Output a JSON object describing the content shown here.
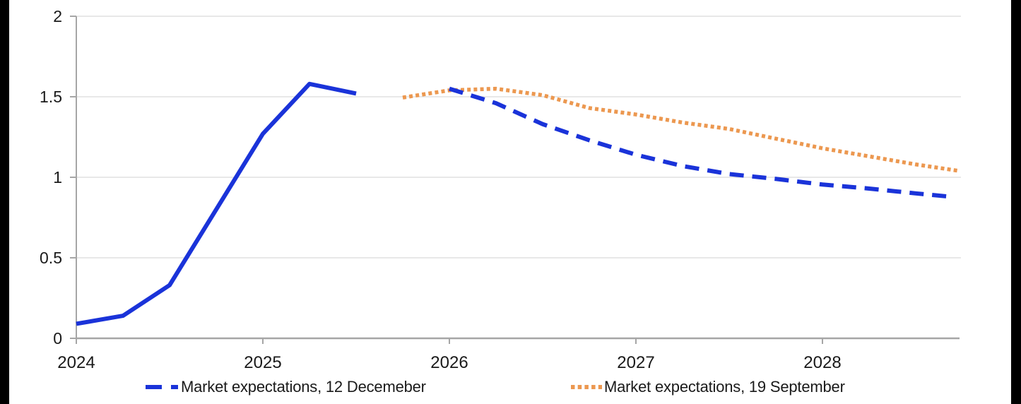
{
  "chart_data": {
    "type": "line",
    "title": "",
    "xlabel": "",
    "ylabel": "",
    "grid": "horizontal",
    "legend_position": "bottom",
    "x_axis": {
      "range": [
        2024,
        2028.73
      ],
      "ticks": [
        2024,
        2025,
        2026,
        2027,
        2028
      ],
      "tick_labels": [
        "2024",
        "2025",
        "2026",
        "2027",
        "2028"
      ]
    },
    "y_axis": {
      "range": [
        0,
        2
      ],
      "ticks": [
        0,
        0.5,
        1,
        1.5,
        2
      ],
      "tick_labels": [
        "0",
        "0.5",
        "1",
        "1.5",
        "2"
      ]
    },
    "series": [
      {
        "name": "Market expectations, 12 Decemeber",
        "color": "#1a33d9",
        "style": "solid-then-dashed",
        "solid_points": [
          [
            2024.0,
            0.09
          ],
          [
            2024.25,
            0.14
          ],
          [
            2024.5,
            0.33
          ],
          [
            2025.0,
            1.27
          ],
          [
            2025.25,
            1.58
          ],
          [
            2025.5,
            1.52
          ]
        ],
        "dashed_points": [
          [
            2026.0,
            1.55
          ],
          [
            2026.25,
            1.46
          ],
          [
            2026.5,
            1.33
          ],
          [
            2026.75,
            1.23
          ],
          [
            2027.0,
            1.14
          ],
          [
            2027.25,
            1.07
          ],
          [
            2027.5,
            1.02
          ],
          [
            2027.75,
            0.99
          ],
          [
            2028.0,
            0.955
          ],
          [
            2028.25,
            0.93
          ],
          [
            2028.5,
            0.9
          ],
          [
            2028.68,
            0.88
          ]
        ]
      },
      {
        "name": "Market expectations, 19 September",
        "color": "#ec9850",
        "style": "dotted",
        "points": [
          [
            2025.75,
            1.495
          ],
          [
            2026.0,
            1.54
          ],
          [
            2026.25,
            1.55
          ],
          [
            2026.5,
            1.51
          ],
          [
            2026.75,
            1.43
          ],
          [
            2027.0,
            1.39
          ],
          [
            2027.25,
            1.34
          ],
          [
            2027.5,
            1.3
          ],
          [
            2027.75,
            1.24
          ],
          [
            2028.0,
            1.18
          ],
          [
            2028.25,
            1.13
          ],
          [
            2028.5,
            1.08
          ],
          [
            2028.73,
            1.04
          ]
        ]
      }
    ]
  },
  "legend": {
    "items": [
      {
        "label": "Market expectations, 12 Decemeber",
        "color": "#1a33d9",
        "pattern": "dashed"
      },
      {
        "label": "Market expectations, 19 September",
        "color": "#ec9850",
        "pattern": "dotted"
      }
    ]
  },
  "colors": {
    "grid": "#d9d9d9",
    "axis": "#a6a6a6",
    "text": "#1a1a1a",
    "frame_bar": "#000000",
    "blue_series": "#1a33d9",
    "orange_series": "#ec9850"
  }
}
